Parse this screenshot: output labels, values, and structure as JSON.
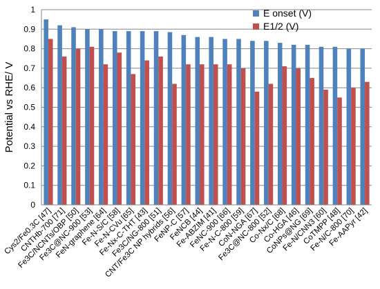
{
  "chart_data": {
    "type": "bar",
    "title": "",
    "xlabel": "",
    "ylabel": "Potential vs RHE/ V",
    "ylim": [
      0,
      1
    ],
    "yticks": [
      0,
      0.1,
      0.2,
      0.3,
      0.4,
      0.5,
      0.6,
      0.7,
      0.8,
      0.9,
      1
    ],
    "ytick_labels": [
      "0",
      "0.1",
      "0.2",
      "0.3",
      "0.4",
      "0.5",
      "0.6",
      "0.7",
      "0.8",
      "0.9",
      "1"
    ],
    "grid": true,
    "legend_position": "top-right",
    "categories": [
      "Cys2/Fe0.3C [47]",
      "CNTHb-700 [71]",
      "Fe3C/NCNTs/OBP [50]",
      "Fe3C@NC-900 [53]",
      "FeN-graphene [64]",
      "Fe-N-S/C [58]",
      "Fe-N-CVu [65]",
      "Fe-Nx-C-THT [43]",
      "Fe3C/NG-800 [51]",
      "CNT/Fe3C NP hybrids [56]",
      "FeNP-C [57]",
      "FeNCB [44]",
      "Fe-ABZIM [41]",
      "FeNC-900 [66]",
      "Fe-N-C-800 [59]",
      "CoN-NGA [67]",
      "Fe3C@NC-800 [52]",
      "Co-Nx/C [68]",
      "Co-HGA [46]",
      "CoNPs@NG [69]",
      "Fe-N/CNN3 [60]",
      "CoTMPP [48]",
      "Fe-N/C-800 [70]",
      "Fe-AAPyr [42]"
    ],
    "series": [
      {
        "name": "E onset (V)",
        "color": "#4F81BD",
        "values": [
          0.95,
          0.92,
          0.91,
          0.9,
          0.9,
          0.89,
          0.89,
          0.89,
          0.89,
          0.885,
          0.87,
          0.86,
          0.86,
          0.85,
          0.85,
          0.84,
          0.84,
          0.83,
          0.82,
          0.82,
          0.81,
          0.81,
          0.8,
          0.8
        ]
      },
      {
        "name": "E1/2 (V)",
        "color": "#C0504D",
        "values": [
          0.85,
          0.76,
          0.8,
          0.81,
          0.72,
          0.78,
          0.67,
          0.74,
          0.76,
          0.62,
          0.72,
          0.72,
          0.72,
          0.72,
          0.7,
          0.58,
          0.62,
          0.71,
          0.7,
          0.65,
          0.59,
          0.55,
          0.6,
          0.63
        ]
      }
    ]
  }
}
